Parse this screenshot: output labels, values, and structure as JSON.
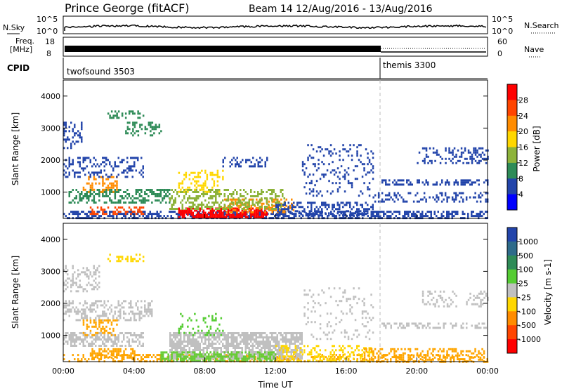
{
  "header": {
    "station": "Prince George (fitACF)",
    "beam_dates": "Beam 14 12/Aug/2016 - 13/Aug/2016"
  },
  "top_panels": {
    "nsky_label": "N.Sky",
    "nsky_ticks": [
      "10^5",
      "10^0"
    ],
    "nsearch_label": "N.Search",
    "nsearch_ticks": [
      "10^5",
      "10^0"
    ],
    "freq_label_1": "Freq.",
    "freq_label_2": "[MHz]",
    "freq_ticks": [
      "18",
      "8"
    ],
    "nave_label": "Nave",
    "nave_ticks": [
      "60",
      "0"
    ],
    "cpid_label": "CPID",
    "cpid_1": "twofsound 3503",
    "cpid_2": "themis 3300"
  },
  "chart_data": [
    {
      "type": "heatmap",
      "panel": "power",
      "ylabel": "Slant Range [km]",
      "xlabel": "",
      "ylim": [
        180,
        4500
      ],
      "y_ticks": [
        "1000",
        "2000",
        "3000",
        "4000"
      ],
      "x_ticks": [
        "00:00",
        "04:00",
        "08:00",
        "12:00",
        "16:00",
        "20:00",
        "00:00"
      ],
      "xlim_hours": [
        0,
        24
      ],
      "colorbar_label": "Power [dB]",
      "colorbar_ticks": [
        "28",
        "24",
        "20",
        "16",
        "12",
        "8",
        "4"
      ],
      "colorbar_colors": [
        "#ff0000",
        "#ff4500",
        "#ff8c00",
        "#ffd700",
        "#8db33a",
        "#2e8b57",
        "#2244aa",
        "#0000ff"
      ],
      "scatter_regions": [
        {
          "t0": 0.0,
          "t1": 24.0,
          "r0": 200,
          "r1": 420,
          "color": "#2244aa",
          "density": 0.55
        },
        {
          "t0": 0.3,
          "t1": 6.0,
          "r0": 700,
          "r1": 1100,
          "color": "#2e8b57",
          "density": 0.45
        },
        {
          "t0": 1.0,
          "t1": 3.0,
          "r0": 1000,
          "r1": 1500,
          "color": "#ff8c00",
          "density": 0.35
        },
        {
          "t0": 0.0,
          "t1": 4.5,
          "r0": 1500,
          "r1": 2100,
          "color": "#2244aa",
          "density": 0.3
        },
        {
          "t0": 0.0,
          "t1": 1.0,
          "r0": 2400,
          "r1": 3200,
          "color": "#2244aa",
          "density": 0.35
        },
        {
          "t0": 2.5,
          "t1": 4.5,
          "r0": 3300,
          "r1": 3550,
          "color": "#2e8b57",
          "density": 0.35
        },
        {
          "t0": 3.5,
          "t1": 5.5,
          "r0": 2800,
          "r1": 3200,
          "color": "#2e8b57",
          "density": 0.35
        },
        {
          "t0": 6.5,
          "t1": 11.5,
          "r0": 200,
          "r1": 520,
          "color": "#ff0000",
          "density": 0.8
        },
        {
          "t0": 9.0,
          "t1": 13.0,
          "r0": 350,
          "r1": 800,
          "color": "#ff8c00",
          "density": 0.45
        },
        {
          "t0": 6.0,
          "t1": 12.5,
          "r0": 500,
          "r1": 1100,
          "color": "#8db33a",
          "density": 0.4
        },
        {
          "t0": 1.5,
          "t1": 4.5,
          "r0": 300,
          "r1": 550,
          "color": "#ff4500",
          "density": 0.45
        },
        {
          "t0": 6.5,
          "t1": 9.0,
          "r0": 1000,
          "r1": 1700,
          "color": "#ffd700",
          "density": 0.25
        },
        {
          "t0": 9.0,
          "t1": 11.5,
          "r0": 1800,
          "r1": 2100,
          "color": "#2244aa",
          "density": 0.3
        },
        {
          "t0": 12.0,
          "t1": 17.5,
          "r0": 300,
          "r1": 700,
          "color": "#2244aa",
          "density": 0.4
        },
        {
          "t0": 13.5,
          "t1": 17.5,
          "r0": 900,
          "r1": 2500,
          "color": "#2244aa",
          "density": 0.15
        },
        {
          "t0": 18.0,
          "t1": 24.0,
          "r0": 1250,
          "r1": 1400,
          "color": "#2244aa",
          "density": 0.45
        },
        {
          "t0": 20.0,
          "t1": 24.0,
          "r0": 1900,
          "r1": 2400,
          "color": "#2244aa",
          "density": 0.3
        },
        {
          "t0": 17.5,
          "t1": 24.0,
          "r0": 700,
          "r1": 1000,
          "color": "#2244aa",
          "density": 0.3
        }
      ]
    },
    {
      "type": "heatmap",
      "panel": "velocity",
      "ylabel": "Slant Range [km]",
      "xlabel": "Time UT",
      "ylim": [
        180,
        4500
      ],
      "y_ticks": [
        "1000",
        "2000",
        "3000",
        "4000"
      ],
      "x_ticks": [
        "00:00",
        "04:00",
        "08:00",
        "12:00",
        "16:00",
        "20:00",
        "00:00"
      ],
      "xlim_hours": [
        0,
        24
      ],
      "colorbar_label": "Velocity [m s-1]",
      "colorbar_ticks": [
        "1000",
        "500",
        "100",
        "25",
        "-25",
        "-100",
        "-500",
        "-1000"
      ],
      "colorbar_colors": [
        "#2244aa",
        "#2e6b8a",
        "#2e8b57",
        "#55cc33",
        "#c0c0c0",
        "#ffd700",
        "#ff8c00",
        "#ff4500",
        "#ff0000"
      ],
      "scatter_regions": [
        {
          "t0": 0.0,
          "t1": 24.0,
          "r0": 200,
          "r1": 420,
          "color": "#ffa500",
          "density": 0.35
        },
        {
          "t0": 6.0,
          "t1": 13.5,
          "r0": 300,
          "r1": 1100,
          "color": "#c0c0c0",
          "density": 0.75
        },
        {
          "t0": 5.5,
          "t1": 12.0,
          "r0": 200,
          "r1": 500,
          "color": "#66cc33",
          "density": 0.55
        },
        {
          "t0": 0.0,
          "t1": 4.5,
          "r0": 700,
          "r1": 1100,
          "color": "#c0c0c0",
          "density": 0.55
        },
        {
          "t0": 0.0,
          "t1": 5.0,
          "r0": 1500,
          "r1": 2100,
          "color": "#c0c0c0",
          "density": 0.4
        },
        {
          "t0": 1.0,
          "t1": 3.0,
          "r0": 1000,
          "r1": 1500,
          "color": "#ffa500",
          "density": 0.35
        },
        {
          "t0": 0.0,
          "t1": 2.0,
          "r0": 2400,
          "r1": 3200,
          "color": "#c0c0c0",
          "density": 0.35
        },
        {
          "t0": 2.5,
          "t1": 4.5,
          "r0": 3300,
          "r1": 3550,
          "color": "#ffd700",
          "density": 0.3
        },
        {
          "t0": 1.5,
          "t1": 4.0,
          "r0": 300,
          "r1": 600,
          "color": "#ffa500",
          "density": 0.5
        },
        {
          "t0": 12.0,
          "t1": 17.5,
          "r0": 200,
          "r1": 700,
          "color": "#ffd700",
          "density": 0.35
        },
        {
          "t0": 13.5,
          "t1": 17.5,
          "r0": 900,
          "r1": 2500,
          "color": "#c0c0c0",
          "density": 0.12
        },
        {
          "t0": 18.0,
          "t1": 24.0,
          "r0": 1250,
          "r1": 1400,
          "color": "#c0c0c0",
          "density": 0.4
        },
        {
          "t0": 20.0,
          "t1": 24.0,
          "r0": 1900,
          "r1": 2400,
          "color": "#c0c0c0",
          "density": 0.25
        },
        {
          "t0": 17.0,
          "t1": 24.0,
          "r0": 200,
          "r1": 600,
          "color": "#ffa500",
          "density": 0.35
        },
        {
          "t0": 6.5,
          "t1": 9.0,
          "r0": 1000,
          "r1": 1700,
          "color": "#55cc33",
          "density": 0.2
        }
      ]
    }
  ]
}
